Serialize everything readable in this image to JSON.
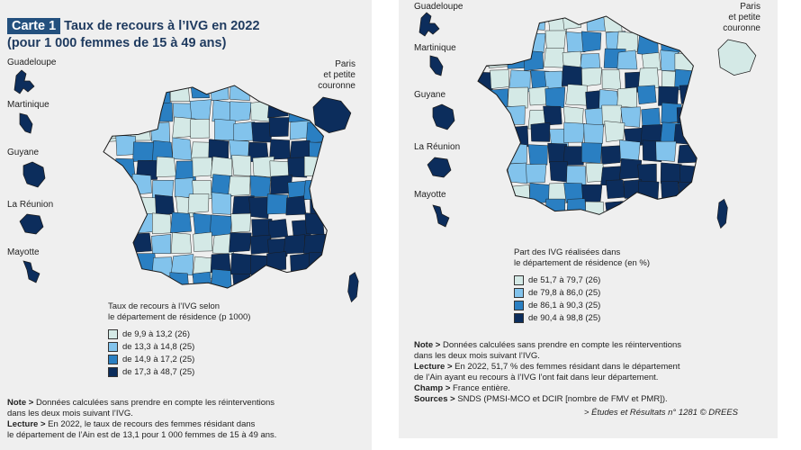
{
  "left": {
    "badge": "Carte 1",
    "title_line1": "Taux de recours à l’IVG en 2022",
    "title_line2": "(pour 1 000 femmes de 15 à 49 ans)",
    "regions": [
      "Guadeloupe",
      "Martinique",
      "Guyane",
      "La Réunion",
      "Mayotte"
    ],
    "paris": [
      "Paris",
      "et petite",
      "couronne"
    ],
    "legend": {
      "title_line1": "Taux de recours à l’IVG selon",
      "title_line2": "le département de résidence (p 1000)",
      "items": [
        {
          "label": "de 9,9 à 13,2 (26)",
          "color": "#d4e9e6"
        },
        {
          "label": "de 13,3 à 14,8 (25)",
          "color": "#82c3ec"
        },
        {
          "label": "de 14,9 à 17,2 (25)",
          "color": "#2a7fc2"
        },
        {
          "label": "de 17,3 à 48,7 (25)",
          "color": "#0c2d5c"
        }
      ]
    },
    "notes": {
      "note_label": "Note >",
      "note_text": " Données calculées sans prendre en compte les réinterventions",
      "note_text2": "dans les deux mois suivant l’IVG.",
      "lecture_label": "Lecture >",
      "lecture_text": " En 2022, le taux de recours des femmes résidant dans",
      "lecture_text2": "le département de l’Ain est de 13,1 pour 1 000 femmes de 15 à 49 ans."
    }
  },
  "right": {
    "regions": [
      "Guadeloupe",
      "Martinique",
      "Guyane",
      "La Réunion",
      "Mayotte"
    ],
    "paris": [
      "Paris",
      "et petite",
      "couronne"
    ],
    "legend": {
      "title_line1": "Part des IVG réalisées dans",
      "title_line2": "le département de résidence (en %)",
      "items": [
        {
          "label": "de 51,7 à 79,7 (26)",
          "color": "#d4e9e6"
        },
        {
          "label": "de 79,8 à 86,0 (25)",
          "color": "#82c3ec"
        },
        {
          "label": "de 86,1 à 90,3 (25)",
          "color": "#2a7fc2"
        },
        {
          "label": "de 90,4 à 98,8 (25)",
          "color": "#0c2d5c"
        }
      ]
    },
    "notes": {
      "note_label": "Note >",
      "note_text": " Données calculées sans prendre en compte les réinterventions",
      "note_text2": "dans les deux mois suivant l’IVG.",
      "lecture_label": "Lecture >",
      "lecture_text": " En 2022, 51,7 % des femmes résidant dans le département",
      "lecture_text2": "de l’Ain ayant eu recours à l’IVG l’ont fait dans leur département.",
      "champ_label": "Champ >",
      "champ_text": " France entière.",
      "sources_label": "Sources >",
      "sources_text": " SNDS (PMSI-MCO et DCIR [nombre de FMV et PMR]).",
      "credit": "> Études et Résultats n° 1281 © DREES"
    }
  },
  "map_palette": [
    "#d4e9e6",
    "#82c3ec",
    "#2a7fc2",
    "#0c2d5c"
  ],
  "outline_color": "#1a1a1a"
}
